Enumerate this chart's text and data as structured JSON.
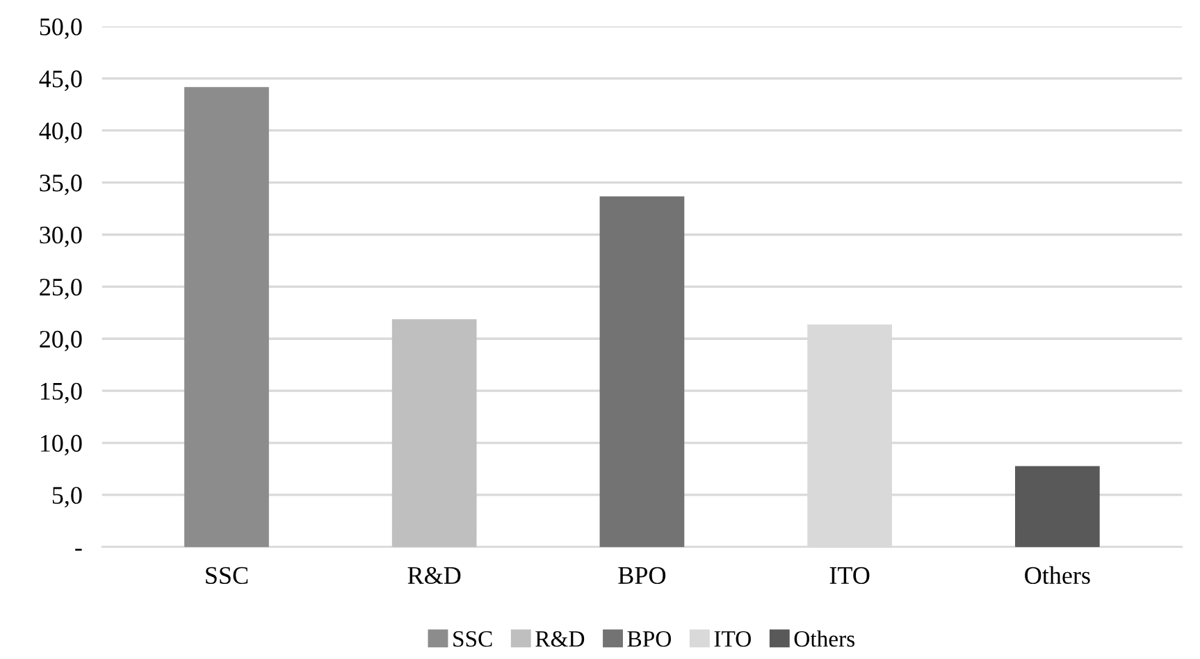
{
  "chart_data": {
    "type": "bar",
    "categories": [
      "SSC",
      "R&D",
      "BPO",
      "ITO",
      "Others"
    ],
    "series": [
      {
        "name": "SSC",
        "color": "#8c8c8c",
        "values": [
          44.1,
          null,
          null,
          null,
          null
        ]
      },
      {
        "name": "R&D",
        "color": "#bfbfbf",
        "values": [
          null,
          21.8,
          null,
          null,
          null
        ]
      },
      {
        "name": "BPO",
        "color": "#737373",
        "values": [
          null,
          null,
          33.6,
          null,
          null
        ]
      },
      {
        "name": "ITO",
        "color": "#d9d9d9",
        "values": [
          null,
          null,
          null,
          21.3,
          null
        ]
      },
      {
        "name": "Others",
        "color": "#595959",
        "values": [
          null,
          null,
          null,
          null,
          7.7
        ]
      }
    ],
    "ylim": [
      0,
      50
    ],
    "yticks": [
      {
        "value": 0,
        "label": "-"
      },
      {
        "value": 5,
        "label": "5,0"
      },
      {
        "value": 10,
        "label": "10,0"
      },
      {
        "value": 15,
        "label": "15,0"
      },
      {
        "value": 20,
        "label": "20,0"
      },
      {
        "value": 25,
        "label": "25,0"
      },
      {
        "value": 30,
        "label": "30,0"
      },
      {
        "value": 35,
        "label": "35,0"
      },
      {
        "value": 40,
        "label": "40,0"
      },
      {
        "value": 45,
        "label": "45,0"
      },
      {
        "value": 50,
        "label": "50,0"
      }
    ],
    "grid": "y",
    "legend": "bottom"
  }
}
